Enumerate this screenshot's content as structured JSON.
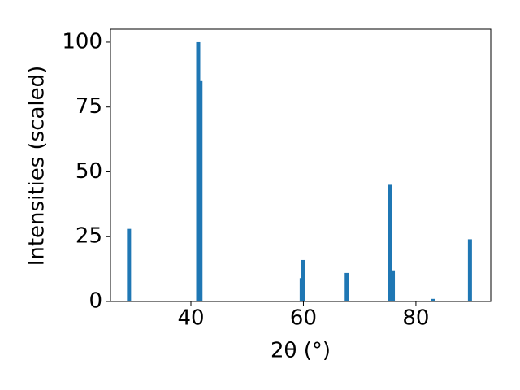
{
  "chart_data": {
    "type": "bar",
    "x": [
      29.0,
      41.3,
      41.7,
      59.7,
      60.0,
      67.7,
      75.4,
      75.9,
      83.0,
      89.6
    ],
    "values": [
      28,
      100,
      85,
      9,
      16,
      11,
      45,
      12,
      1,
      24
    ],
    "color": "#1f77b4",
    "xlabel": "2θ (°)",
    "ylabel": "Intensities (scaled)",
    "xlim": [
      25.7,
      93.3
    ],
    "xticks": [
      40,
      60,
      80
    ],
    "ylim": [
      0,
      105
    ],
    "yticks": [
      0,
      25,
      50,
      75,
      100
    ]
  }
}
